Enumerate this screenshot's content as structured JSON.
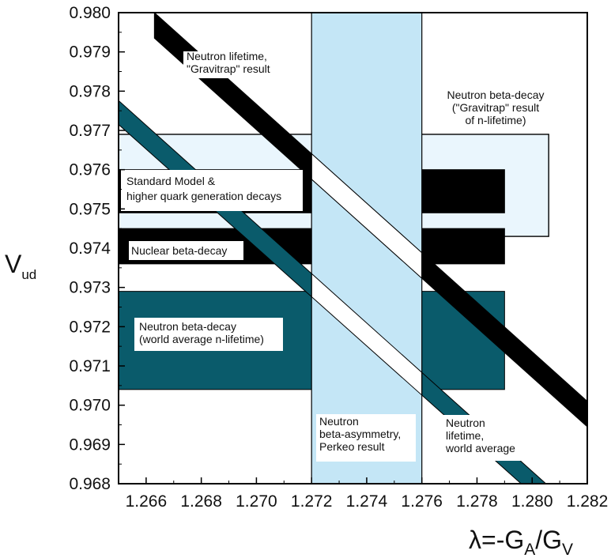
{
  "chart_data": {
    "type": "area",
    "xlim": [
      1.265,
      1.282
    ],
    "ylim": [
      0.968,
      0.98
    ],
    "x_ticks": [
      "1.266",
      "1.268",
      "1.270",
      "1.272",
      "1.274",
      "1.276",
      "1.278",
      "1.280",
      "1.282"
    ],
    "y_ticks": [
      "0.968",
      "0.969",
      "0.970",
      "0.971",
      "0.972",
      "0.973",
      "0.974",
      "0.975",
      "0.976",
      "0.977",
      "0.978",
      "0.979",
      "0.980"
    ],
    "ylabel": {
      "main": "V",
      "sub": "ud"
    },
    "xlabel": {
      "main": "λ=-G",
      "sub1": "A",
      "mid": "/G",
      "sub2": "V"
    },
    "colors": {
      "black": "#000000",
      "teal": "#0a5b6b",
      "light_blue": "#c4e6f6",
      "pale_blue": "#eaf6fd",
      "white": "#ffffff"
    },
    "vertical_band": {
      "name": "Neutron beta-asymmetry, Perkeo result",
      "x_range": [
        1.272,
        1.276
      ]
    },
    "horizontal_bands": [
      {
        "name": "Neutron beta-decay (\"Gravitrap\" result of n-lifetime)",
        "y_range": [
          0.9743,
          0.9769
        ],
        "x_range": [
          1.265,
          1.2806
        ]
      },
      {
        "name": "Standard Model & higher quark generation decays",
        "y_range": [
          0.9749,
          0.976
        ],
        "x_range": [
          1.265,
          1.279
        ]
      },
      {
        "name": "Nuclear beta-decay",
        "y_range": [
          0.9736,
          0.9745
        ],
        "x_range": [
          1.265,
          1.279
        ]
      },
      {
        "name": "Neutron beta-decay (world average n-lifetime)",
        "y_range": [
          0.9704,
          0.9729
        ],
        "x_range": [
          1.265,
          1.279
        ]
      }
    ],
    "diagonal_bands": [
      {
        "name": "Neutron lifetime, \"Gravitrap\" result",
        "upper": [
          [
            1.2663,
            0.98
          ],
          [
            1.282,
            0.9701
          ]
        ],
        "lower": [
          [
            1.2663,
            0.97935
          ],
          [
            1.282,
            0.96945
          ]
        ]
      },
      {
        "name": "Neutron lifetime, world average",
        "upper": [
          [
            1.265,
            0.97776
          ],
          [
            1.2805,
            0.968
          ]
        ],
        "lower": [
          [
            1.265,
            0.97715
          ],
          [
            1.2796,
            0.968
          ]
        ]
      }
    ],
    "annotations": {
      "gravitrap_lifetime": [
        "Neutron lifetime,",
        "\"Gravitrap\" result"
      ],
      "gravitrap_decay": [
        "Neutron beta-decay",
        "(\"Gravitrap\" result",
        "of n-lifetime)"
      ],
      "standard_model": [
        "Standard Model &",
        "higher quark generation decays"
      ],
      "nuclear": [
        "Nuclear beta-decay"
      ],
      "world_avg_decay": [
        "Neutron beta-decay",
        "(world average n-lifetime)"
      ],
      "perkeo": [
        "Neutron",
        "beta-asymmetry,",
        "Perkeo result"
      ],
      "world_avg_lifetime": [
        "Neutron",
        "lifetime,",
        "world average"
      ]
    }
  }
}
